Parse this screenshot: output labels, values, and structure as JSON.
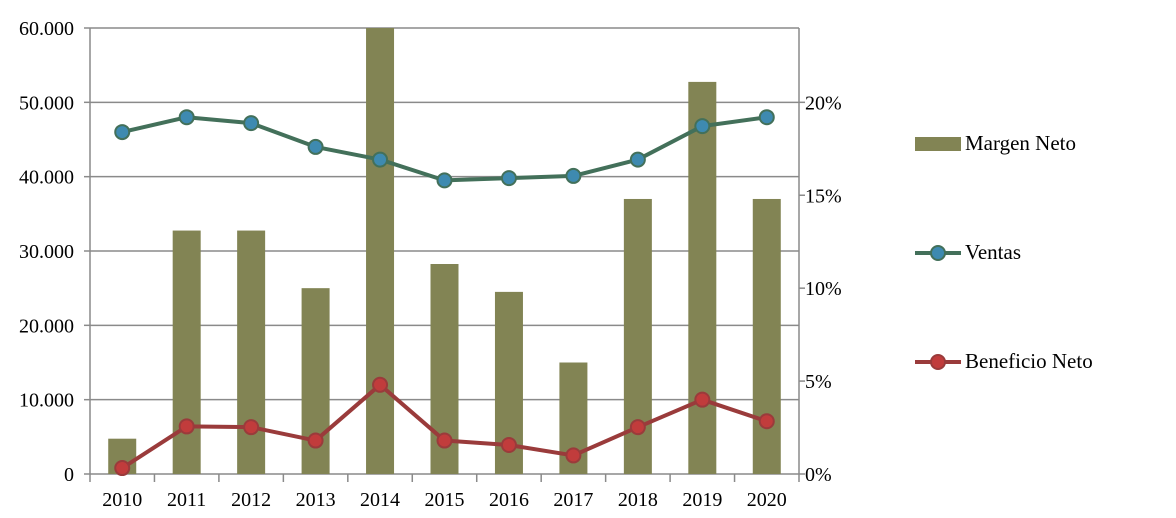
{
  "chart_data": {
    "type": "bar+line",
    "categories": [
      "2010",
      "2011",
      "2012",
      "2013",
      "2014",
      "2015",
      "2016",
      "2017",
      "2018",
      "2019",
      "2020"
    ],
    "left_axis": {
      "ticks": [
        "0",
        "10.000",
        "20.000",
        "30.000",
        "40.000",
        "50.000",
        "60.000"
      ],
      "ylim": [
        0,
        60000
      ]
    },
    "right_axis": {
      "ticks": [
        "0%",
        "5%",
        "10%",
        "15%",
        "20%"
      ],
      "ylim": [
        0,
        0.24
      ]
    },
    "series": [
      {
        "name": "Margen Neto",
        "type": "bar",
        "axis": "right",
        "color": "#828454",
        "values": [
          0.019,
          0.131,
          0.131,
          0.1,
          0.24,
          0.113,
          0.098,
          0.06,
          0.148,
          0.211,
          0.148
        ]
      },
      {
        "name": "Ventas",
        "type": "line",
        "axis": "left",
        "color": "#43705a",
        "marker_fill": "#3e8ab0",
        "values": [
          46000,
          48000,
          47200,
          44000,
          42300,
          39500,
          39800,
          40100,
          42300,
          46800,
          48000
        ]
      },
      {
        "name": "Beneficio Neto",
        "type": "line",
        "axis": "left",
        "color": "#9a3b3b",
        "marker_fill": "#c13c3c",
        "values": [
          800,
          6400,
          6300,
          4500,
          12000,
          4500,
          3900,
          2500,
          6300,
          10000,
          7100
        ]
      }
    ],
    "legend_position": "right",
    "grid": true
  }
}
